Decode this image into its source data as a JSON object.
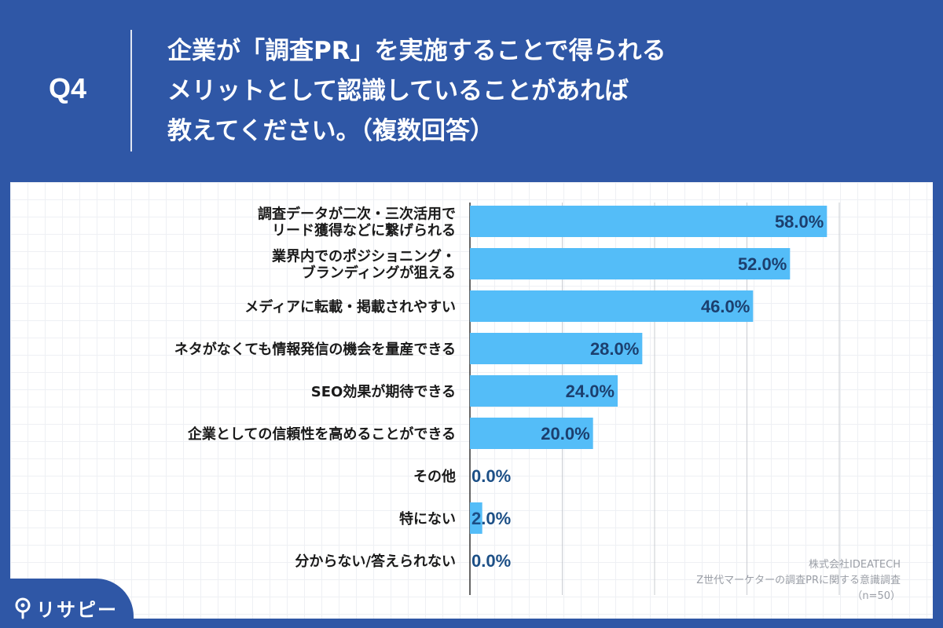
{
  "header": {
    "q_number": "Q4",
    "question_lines": [
      "企業が「調査PR」を実施することで得られる",
      "メリットとして認識していることがあれば",
      "教えてください。（複数回答）"
    ]
  },
  "chart_data": {
    "type": "bar",
    "orientation": "horizontal",
    "categories": [
      [
        "調査データが二次・三次活用で",
        "リード獲得などに繋げられる"
      ],
      [
        "業界内でのポジショニング・",
        "ブランディングが狙える"
      ],
      [
        "メディアに転載・掲載されやすい"
      ],
      [
        "ネタがなくても情報発信の機会を量産できる"
      ],
      [
        "SEO効果が期待できる"
      ],
      [
        "企業としての信頼性を高めることができる"
      ],
      [
        "その他"
      ],
      [
        "特にない"
      ],
      [
        "分からない/答えられない"
      ]
    ],
    "values": [
      58.0,
      52.0,
      46.0,
      28.0,
      24.0,
      20.0,
      0.0,
      2.0,
      0.0
    ],
    "value_labels": [
      "58.0%",
      "52.0%",
      "46.0%",
      "28.0%",
      "24.0%",
      "20.0%",
      "0.0%",
      "2.0%",
      "0.0%"
    ],
    "xlim": [
      0,
      60
    ],
    "gridlines": [
      15,
      30,
      45,
      60
    ],
    "grid": true,
    "bar_color": "#54bdf8",
    "label_color_inside": "#1c3f6e",
    "label_color_outside": "#1c4f86"
  },
  "source": {
    "company": "株式会社IDEATECH",
    "survey": "Z世代マーケターの調査PRに関する意識調査",
    "sample": "（n=50）"
  },
  "logo": {
    "text": "リサピー",
    "icon": "pin-icon"
  },
  "colors": {
    "background": "#2f57a6",
    "panel": "#ffffff"
  }
}
